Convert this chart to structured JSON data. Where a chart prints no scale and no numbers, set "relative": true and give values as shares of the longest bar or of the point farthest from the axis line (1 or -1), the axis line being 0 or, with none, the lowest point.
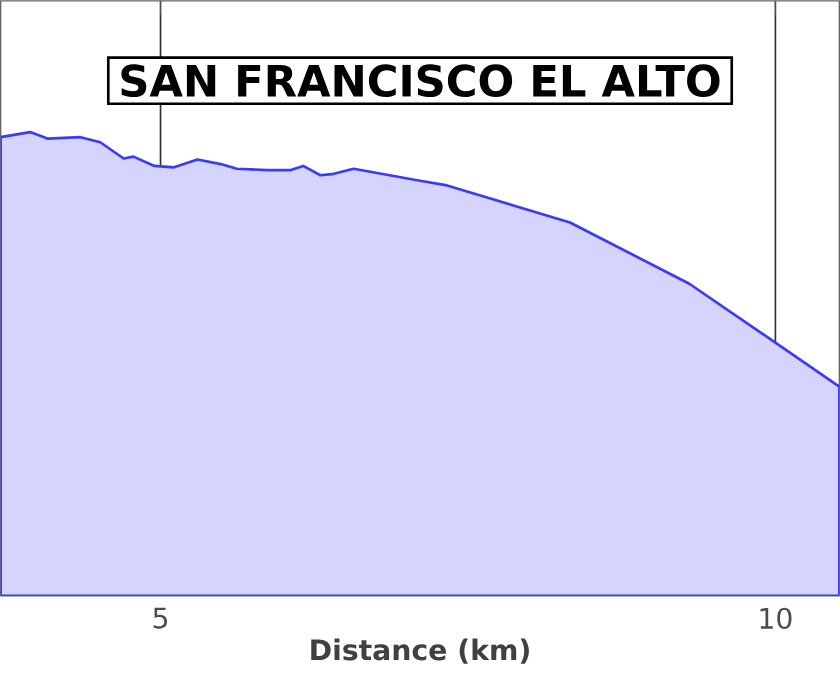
{
  "chart_data": {
    "type": "area",
    "title": "SAN FRANCISCO EL ALTO",
    "xlabel": "Distance (km)",
    "relative": true,
    "xlim": [
      3.7,
      10.52
    ],
    "xticks": [
      5,
      10
    ],
    "grid": "x",
    "color": "#3a3aff",
    "x": [
      3.7,
      3.94,
      4.08,
      4.35,
      4.51,
      4.7,
      4.78,
      4.95,
      5.11,
      5.3,
      5.49,
      5.62,
      5.87,
      6.06,
      6.16,
      6.3,
      6.41,
      6.57,
      7.11,
      7.33,
      8.33,
      9.3,
      10.05,
      10.52
    ],
    "values": [
      0.989,
      1.0,
      0.986,
      0.989,
      0.978,
      0.943,
      0.947,
      0.927,
      0.924,
      0.941,
      0.931,
      0.921,
      0.918,
      0.918,
      0.927,
      0.907,
      0.91,
      0.921,
      0.895,
      0.885,
      0.805,
      0.673,
      0.537,
      0.451
    ]
  }
}
